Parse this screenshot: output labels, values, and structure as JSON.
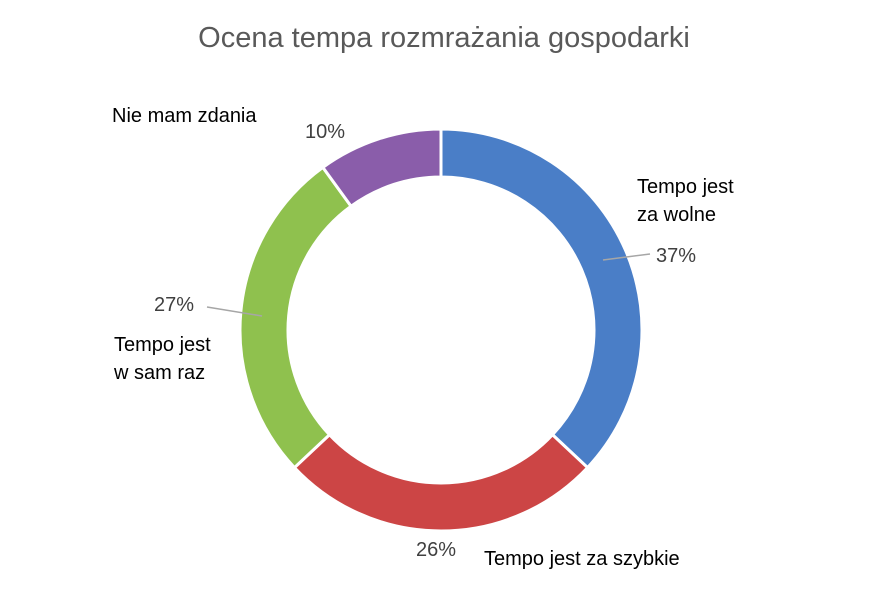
{
  "chart_data": {
    "type": "pie",
    "variant": "donut",
    "title": "Ocena tempa rozmrażania gospodarki",
    "slices": [
      {
        "label_lines": [
          "Tempo jest",
          "za wolne"
        ],
        "value": 37,
        "value_label": "37%",
        "color": "#4A7EC7"
      },
      {
        "label_lines": [
          "Tempo jest za szybkie"
        ],
        "value": 26,
        "value_label": "26%",
        "color": "#CC4545"
      },
      {
        "label_lines": [
          "Tempo jest",
          "w sam raz"
        ],
        "value": 27,
        "value_label": "27%",
        "color": "#8FC14E"
      },
      {
        "label_lines": [
          "Nie mam zdania"
        ],
        "value": 10,
        "value_label": "10%",
        "color": "#8A5DAA"
      }
    ],
    "legend": "none",
    "grid": false
  }
}
